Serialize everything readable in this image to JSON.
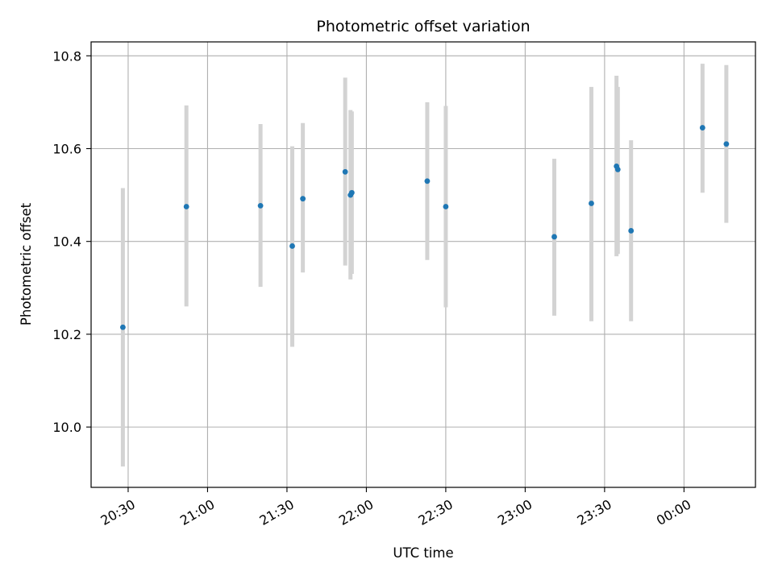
{
  "chart_data": {
    "type": "scatter",
    "title": "Photometric offset variation",
    "xlabel": "UTC time",
    "ylabel": "Photometric offset",
    "x_axis_kind": "time",
    "x_tick_labels": [
      "20:30",
      "21:00",
      "21:30",
      "22:00",
      "22:30",
      "23:00",
      "23:30",
      "00:00"
    ],
    "x_tick_times": [
      "20:30",
      "21:00",
      "21:30",
      "22:00",
      "22:30",
      "23:00",
      "23:30",
      "00:00"
    ],
    "xlim": [
      "20:16",
      "00:27"
    ],
    "ylim": [
      9.87,
      10.83
    ],
    "y_ticks": [
      10.0,
      10.2,
      10.4,
      10.6,
      10.8
    ],
    "y_tick_labels": [
      "10.0",
      "10.2",
      "10.4",
      "10.6",
      "10.8"
    ],
    "grid": true,
    "point_color": "#1f77b4",
    "errorbar_color": "#d3d3d3",
    "grid_color": "#b0b0b0",
    "points": [
      {
        "time": "20:28",
        "y": 10.215,
        "ylow": 9.915,
        "yhigh": 10.515
      },
      {
        "time": "20:52",
        "y": 10.475,
        "ylow": 10.26,
        "yhigh": 10.693
      },
      {
        "time": "21:20",
        "y": 10.477,
        "ylow": 10.302,
        "yhigh": 10.653
      },
      {
        "time": "21:32",
        "y": 10.39,
        "ylow": 10.173,
        "yhigh": 10.605
      },
      {
        "time": "21:36",
        "y": 10.492,
        "ylow": 10.333,
        "yhigh": 10.655
      },
      {
        "time": "21:52",
        "y": 10.55,
        "ylow": 10.348,
        "yhigh": 10.753
      },
      {
        "time": "21:54",
        "y": 10.5,
        "ylow": 10.318,
        "yhigh": 10.683
      },
      {
        "time": "21:54.5",
        "y": 10.505,
        "ylow": 10.33,
        "yhigh": 10.68
      },
      {
        "time": "22:23",
        "y": 10.53,
        "ylow": 10.36,
        "yhigh": 10.7
      },
      {
        "time": "22:30",
        "y": 10.475,
        "ylow": 10.258,
        "yhigh": 10.692
      },
      {
        "time": "23:11",
        "y": 10.41,
        "ylow": 10.24,
        "yhigh": 10.578
      },
      {
        "time": "23:25",
        "y": 10.482,
        "ylow": 10.228,
        "yhigh": 10.733
      },
      {
        "time": "23:34.5",
        "y": 10.562,
        "ylow": 10.368,
        "yhigh": 10.757
      },
      {
        "time": "23:35",
        "y": 10.555,
        "ylow": 10.373,
        "yhigh": 10.733
      },
      {
        "time": "23:40",
        "y": 10.423,
        "ylow": 10.228,
        "yhigh": 10.618
      },
      {
        "time": "00:07",
        "y": 10.645,
        "ylow": 10.505,
        "yhigh": 10.783
      },
      {
        "time": "00:16",
        "y": 10.61,
        "ylow": 10.44,
        "yhigh": 10.78
      }
    ]
  }
}
